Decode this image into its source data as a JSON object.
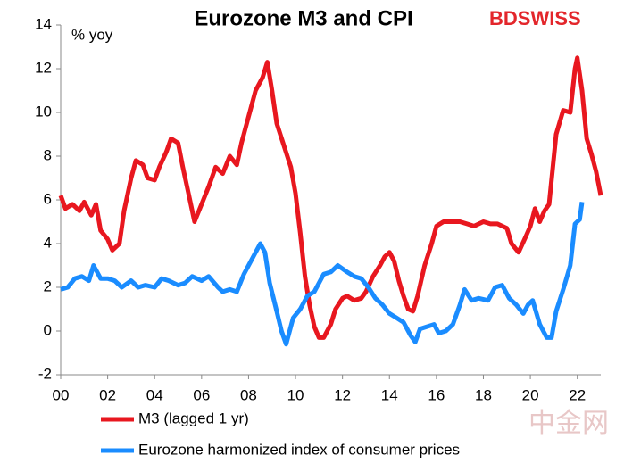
{
  "chart_data": {
    "type": "line",
    "title": "Eurozone M3 and CPI",
    "y_label": "% yoy",
    "logo": "BDSWISS",
    "watermark": "中金网",
    "xlim": [
      2000,
      2023
    ],
    "ylim": [
      -2,
      14
    ],
    "xticks": [
      {
        "value": 2000,
        "label": "00"
      },
      {
        "value": 2002,
        "label": "02"
      },
      {
        "value": 2004,
        "label": "04"
      },
      {
        "value": 2006,
        "label": "06"
      },
      {
        "value": 2008,
        "label": "08"
      },
      {
        "value": 2010,
        "label": "10"
      },
      {
        "value": 2012,
        "label": "12"
      },
      {
        "value": 2014,
        "label": "14"
      },
      {
        "value": 2016,
        "label": "16"
      },
      {
        "value": 2018,
        "label": "18"
      },
      {
        "value": 2020,
        "label": "20"
      },
      {
        "value": 2022,
        "label": "22"
      }
    ],
    "yticks": [
      -2,
      0,
      2,
      4,
      6,
      8,
      10,
      12,
      14
    ],
    "series": [
      {
        "name": "M3 (lagged 1 yr)",
        "color": "#e8171f",
        "x": [
          2000,
          2000.2,
          2000.5,
          2000.8,
          2001,
          2001.3,
          2001.5,
          2001.7,
          2002,
          2002.2,
          2002.5,
          2002.7,
          2003,
          2003.2,
          2003.5,
          2003.7,
          2004,
          2004.2,
          2004.5,
          2004.7,
          2005,
          2005.2,
          2005.5,
          2005.7,
          2006,
          2006.3,
          2006.6,
          2006.9,
          2007.2,
          2007.5,
          2007.7,
          2008,
          2008.3,
          2008.6,
          2008.8,
          2009,
          2009.2,
          2009.5,
          2009.8,
          2010,
          2010.2,
          2010.4,
          2010.6,
          2010.8,
          2011,
          2011.2,
          2011.5,
          2011.7,
          2012,
          2012.2,
          2012.5,
          2012.8,
          2013,
          2013.3,
          2013.6,
          2013.8,
          2014,
          2014.2,
          2014.4,
          2014.6,
          2014.8,
          2015,
          2015.2,
          2015.5,
          2015.8,
          2016,
          2016.3,
          2016.6,
          2017,
          2017.3,
          2017.6,
          2018,
          2018.3,
          2018.6,
          2019,
          2019.2,
          2019.5,
          2019.8,
          2020,
          2020.2,
          2020.4,
          2020.6,
          2020.8,
          2021.1,
          2021.4,
          2021.7,
          2021.9,
          2022,
          2022.2,
          2022.4,
          2022.6,
          2022.8,
          2023
        ],
        "values": [
          6.2,
          5.6,
          5.8,
          5.5,
          5.9,
          5.3,
          5.8,
          4.6,
          4.2,
          3.7,
          4.0,
          5.5,
          7.0,
          7.8,
          7.6,
          7.0,
          6.9,
          7.5,
          8.2,
          8.8,
          8.6,
          7.5,
          6.0,
          5.0,
          5.8,
          6.6,
          7.5,
          7.2,
          8.0,
          7.6,
          8.6,
          9.8,
          11.0,
          11.6,
          12.3,
          11.0,
          9.5,
          8.5,
          7.5,
          6.3,
          4.5,
          2.5,
          1.2,
          0.2,
          -0.3,
          -0.3,
          0.3,
          1.0,
          1.5,
          1.6,
          1.4,
          1.5,
          1.8,
          2.5,
          3.0,
          3.4,
          3.6,
          3.2,
          2.3,
          1.6,
          1.0,
          0.9,
          1.6,
          3.0,
          4.0,
          4.8,
          5.0,
          5.0,
          5.0,
          4.9,
          4.8,
          5.0,
          4.9,
          4.9,
          4.7,
          4.0,
          3.6,
          4.3,
          4.8,
          5.6,
          5.0,
          5.5,
          5.8,
          9.0,
          10.1,
          10.0,
          12.0,
          12.5,
          11.0,
          8.8,
          8.1,
          7.3,
          6.2
        ]
      },
      {
        "name": "Eurozone harmonized index of consumer prices",
        "color": "#1a8cff",
        "x": [
          2000,
          2000.3,
          2000.6,
          2000.9,
          2001.2,
          2001.4,
          2001.7,
          2002,
          2002.3,
          2002.6,
          2003,
          2003.3,
          2003.6,
          2004,
          2004.3,
          2004.6,
          2005,
          2005.3,
          2005.6,
          2006,
          2006.3,
          2006.7,
          2006.9,
          2007.2,
          2007.5,
          2007.8,
          2008.2,
          2008.5,
          2008.7,
          2008.9,
          2009.2,
          2009.4,
          2009.6,
          2009.9,
          2010.2,
          2010.5,
          2010.8,
          2011.2,
          2011.5,
          2011.8,
          2012.2,
          2012.5,
          2012.8,
          2013.1,
          2013.4,
          2013.7,
          2014,
          2014.3,
          2014.6,
          2014.9,
          2015.1,
          2015.3,
          2015.6,
          2015.9,
          2016.1,
          2016.4,
          2016.7,
          2017,
          2017.2,
          2017.5,
          2017.8,
          2018.2,
          2018.5,
          2018.8,
          2019.1,
          2019.4,
          2019.7,
          2019.9,
          2020.1,
          2020.4,
          2020.7,
          2020.9,
          2021.1,
          2021.4,
          2021.7,
          2021.9,
          2022.1,
          2022.2
        ],
        "values": [
          1.9,
          2.0,
          2.4,
          2.5,
          2.3,
          3.0,
          2.4,
          2.4,
          2.3,
          2.0,
          2.3,
          2.0,
          2.1,
          2.0,
          2.4,
          2.3,
          2.1,
          2.2,
          2.5,
          2.3,
          2.5,
          2.0,
          1.8,
          1.9,
          1.8,
          2.6,
          3.4,
          4.0,
          3.6,
          2.2,
          0.9,
          0.0,
          -0.6,
          0.6,
          1.0,
          1.6,
          1.8,
          2.6,
          2.7,
          3.0,
          2.7,
          2.5,
          2.4,
          2.0,
          1.5,
          1.2,
          0.8,
          0.6,
          0.4,
          -0.2,
          -0.5,
          0.1,
          0.2,
          0.3,
          -0.1,
          0.0,
          0.3,
          1.2,
          1.9,
          1.4,
          1.5,
          1.4,
          2.0,
          2.1,
          1.5,
          1.2,
          0.8,
          1.2,
          1.4,
          0.3,
          -0.3,
          -0.3,
          0.9,
          1.9,
          3.0,
          4.9,
          5.1,
          5.9
        ]
      }
    ]
  }
}
